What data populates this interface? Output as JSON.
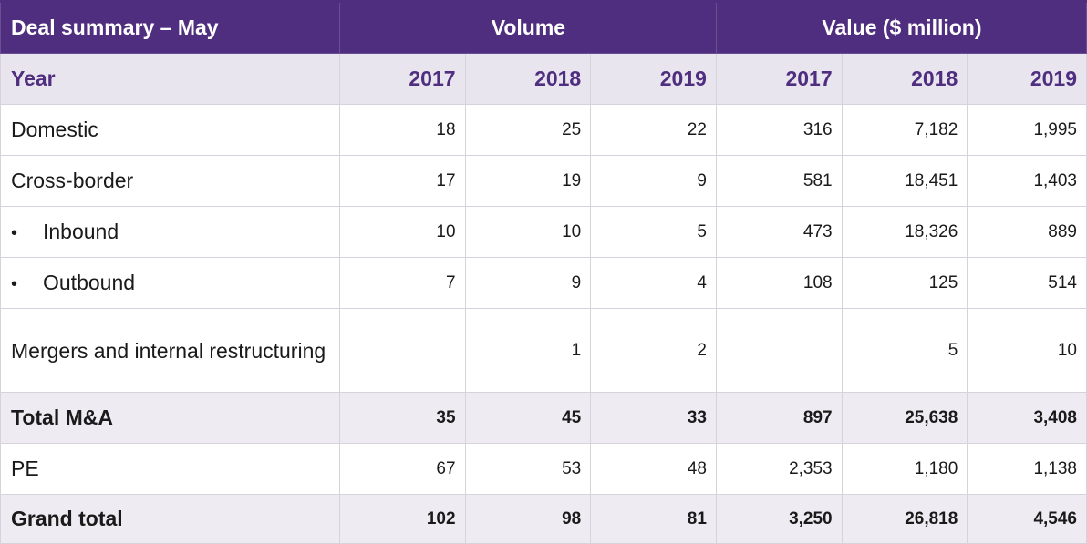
{
  "title": "Deal summary – May",
  "groups": {
    "volume": "Volume",
    "value": "Value ($ million)"
  },
  "year_label": "Year",
  "years": [
    "2017",
    "2018",
    "2019",
    "2017",
    "2018",
    "2019"
  ],
  "bullet_glyph": "•",
  "rows": [
    {
      "label": "Domestic",
      "values": [
        "18",
        "25",
        "22",
        "316",
        "7,182",
        "1,995"
      ]
    },
    {
      "label": "Cross-border",
      "values": [
        "17",
        "19",
        "9",
        "581",
        "18,451",
        "1,403"
      ]
    },
    {
      "label": "Inbound",
      "values": [
        "10",
        "10",
        "5",
        "473",
        "18,326",
        "889"
      ]
    },
    {
      "label": "Outbound",
      "values": [
        "7",
        "9",
        "4",
        "108",
        "125",
        "514"
      ]
    },
    {
      "label": "Mergers and internal restructuring",
      "values": [
        "",
        "1",
        "2",
        "",
        "5",
        "10"
      ]
    },
    {
      "label": "Total M&A",
      "values": [
        "35",
        "45",
        "33",
        "897",
        "25,638",
        "3,408"
      ]
    },
    {
      "label": "PE",
      "values": [
        "67",
        "53",
        "48",
        "2,353",
        "1,180",
        "1,138"
      ]
    },
    {
      "label": "Grand total",
      "values": [
        "102",
        "98",
        "81",
        "3,250",
        "26,818",
        "4,546"
      ]
    }
  ]
}
